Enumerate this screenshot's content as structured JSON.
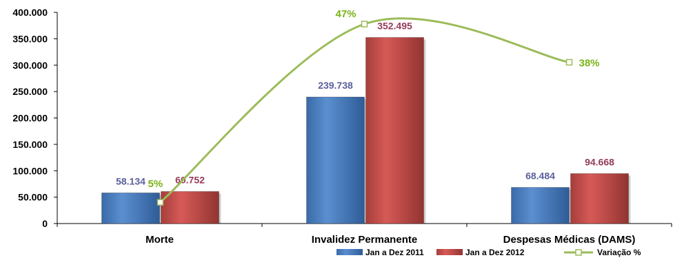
{
  "chart_data": {
    "type": "bar",
    "categories": [
      "Morte",
      "Invalidez Permanente",
      "Despesas Médicas (DAMS)"
    ],
    "series": [
      {
        "name": "Jan a Dez 2011",
        "values": [
          58134,
          239738,
          68484
        ],
        "labels": [
          "58.134",
          "239.738",
          "68.484"
        ],
        "color": "#4f81bd",
        "label_color": "#5a5f9c"
      },
      {
        "name": "Jan a Dez 2012",
        "values": [
          60752,
          352495,
          94668
        ],
        "labels": [
          "60.752",
          "352.495",
          "94.668"
        ],
        "color": "#c0504d",
        "label_color": "#953a5a"
      }
    ],
    "line_series": {
      "name": "Variação %",
      "type": "line",
      "values": [
        5,
        47,
        38
      ],
      "labels": [
        "5%",
        "47%",
        "38%"
      ],
      "color": "#9bbb59",
      "label_color": "#7ab317",
      "axis": "secondary (unshown)"
    },
    "y_ticks": [
      "0",
      "50.000",
      "100.000",
      "150.000",
      "200.000",
      "250.000",
      "300.000",
      "350.000",
      "400.000"
    ],
    "ylim": [
      0,
      400000
    ],
    "grid": false,
    "legend_position": "bottom-right"
  }
}
